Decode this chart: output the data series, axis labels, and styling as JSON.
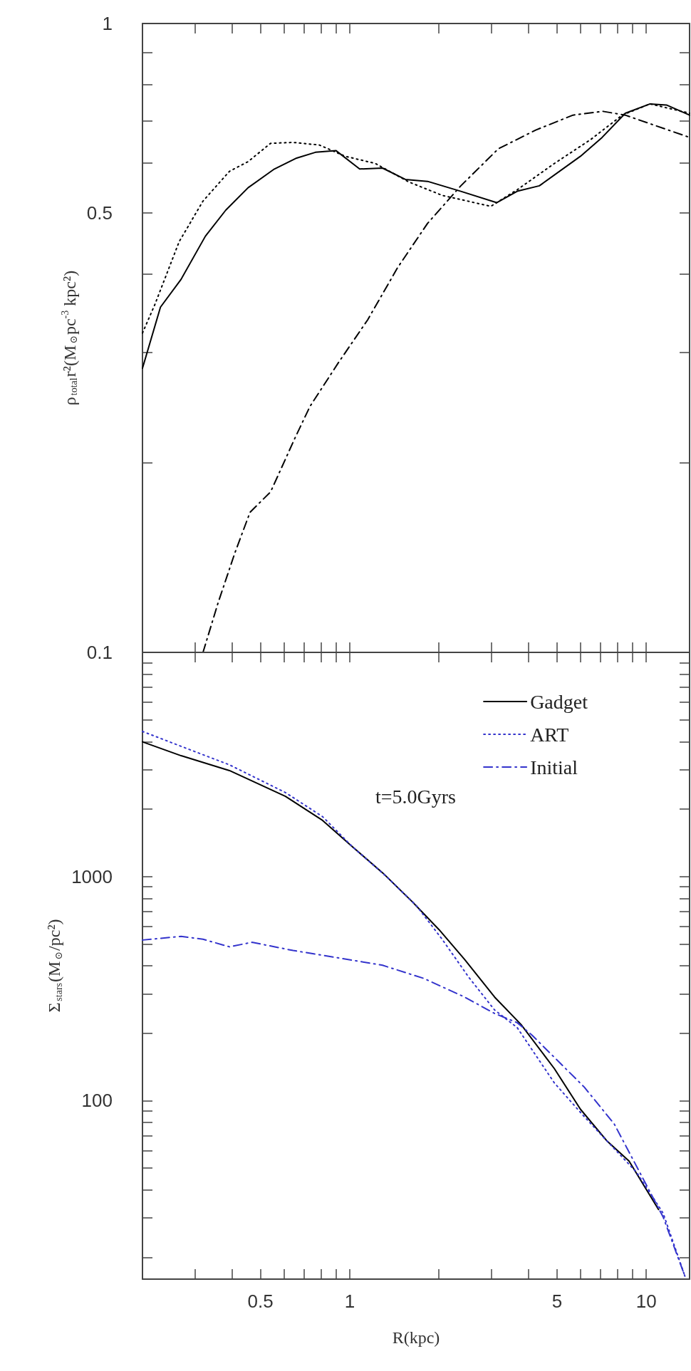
{
  "chart_data": [
    {
      "type": "line",
      "ylabel": "ρ$_{total}$r²(M$_{⊙}$pc$^{-3}$ kpc²)",
      "log": "xy",
      "xlim": [
        0.2,
        14
      ],
      "ylim": [
        0.1,
        1
      ],
      "xticks": [
        {
          "value": 0.3,
          "label": null
        },
        {
          "value": 0.4,
          "label": null
        },
        {
          "value": 0.5,
          "label": null
        },
        {
          "value": 0.6,
          "label": null
        },
        {
          "value": 0.7,
          "label": null
        },
        {
          "value": 0.8,
          "label": null
        },
        {
          "value": 0.9,
          "label": null
        },
        {
          "value": 1,
          "label": null
        },
        {
          "value": 2,
          "label": null
        },
        {
          "value": 3,
          "label": null
        },
        {
          "value": 4,
          "label": null
        },
        {
          "value": 5,
          "label": null
        },
        {
          "value": 6,
          "label": null
        },
        {
          "value": 7,
          "label": null
        },
        {
          "value": 8,
          "label": null
        },
        {
          "value": 9,
          "label": null
        },
        {
          "value": 10,
          "label": null
        }
      ],
      "yticks": [
        0.1,
        {
          "value": 0.2,
          "label": null
        },
        {
          "value": 0.3,
          "label": null
        },
        {
          "value": 0.4,
          "label": null
        },
        0.5,
        {
          "value": 0.6,
          "label": null
        },
        {
          "value": 0.7,
          "label": null
        },
        {
          "value": 0.8,
          "label": null
        },
        {
          "value": 0.9,
          "label": null
        },
        1
      ],
      "tick_labels": "y",
      "legend": false,
      "grid": false,
      "series": [
        {
          "color": "#000000",
          "line_style": "solid",
          "x": [
            0.2,
            0.23,
            0.27,
            0.326,
            0.382,
            0.454,
            0.557,
            0.662,
            0.766,
            0.898,
            1.08,
            1.29,
            1.54,
            1.83,
            2.37,
            3.13,
            3.67,
            4.36,
            6.0,
            7.1,
            8.5,
            10.3,
            11.7,
            14
          ],
          "values": [
            0.283,
            0.354,
            0.392,
            0.459,
            0.505,
            0.548,
            0.587,
            0.611,
            0.624,
            0.628,
            0.587,
            0.589,
            0.565,
            0.561,
            0.541,
            0.519,
            0.541,
            0.552,
            0.615,
            0.659,
            0.72,
            0.745,
            0.742,
            0.715
          ]
        },
        {
          "color": "#000000",
          "line_style": "dotted",
          "x": [
            0.2,
            0.22,
            0.266,
            0.32,
            0.393,
            0.454,
            0.541,
            0.644,
            0.789,
            0.966,
            1.22,
            1.58,
            2.05,
            2.99,
            3.67,
            4.9,
            6.5,
            8.3,
            10.3,
            14
          ],
          "values": [
            0.322,
            0.357,
            0.45,
            0.522,
            0.582,
            0.603,
            0.645,
            0.647,
            0.641,
            0.615,
            0.599,
            0.56,
            0.533,
            0.512,
            0.544,
            0.599,
            0.654,
            0.715,
            0.745,
            0.72
          ]
        },
        {
          "color": "#000000",
          "line_style": "dashed",
          "x": [
            0.32,
            0.36,
            0.41,
            0.461,
            0.541,
            0.653,
            0.734,
            0.912,
            1.15,
            1.45,
            1.83,
            2.37,
            3.17,
            4.24,
            5.66,
            7.14,
            8.5,
            10.1,
            14
          ],
          "values": [
            0.1,
            0.12,
            0.144,
            0.167,
            0.18,
            0.219,
            0.246,
            0.288,
            0.338,
            0.409,
            0.481,
            0.552,
            0.632,
            0.677,
            0.715,
            0.725,
            0.715,
            0.695,
            0.659
          ]
        }
      ]
    },
    {
      "type": "line",
      "xlabel": "R(kpc)",
      "ylabel": "Σ$_{stars}$(M$_{⊙}$/pc²)",
      "log": "xy",
      "xlim": [
        0.2,
        14
      ],
      "ylim": [
        16,
        10000
      ],
      "xticks": [
        {
          "value": 0.3,
          "label": null
        },
        {
          "value": 0.4,
          "label": null
        },
        0.5,
        {
          "value": 0.6,
          "label": null
        },
        {
          "value": 0.7,
          "label": null
        },
        {
          "value": 0.8,
          "label": null
        },
        {
          "value": 0.9,
          "label": null
        },
        1,
        {
          "value": 2,
          "label": null
        },
        {
          "value": 3,
          "label": null
        },
        {
          "value": 4,
          "label": null
        },
        5,
        {
          "value": 6,
          "label": null
        },
        {
          "value": 7,
          "label": null
        },
        {
          "value": 8,
          "label": null
        },
        {
          "value": 9,
          "label": null
        },
        10
      ],
      "yticks": [
        {
          "value": 20,
          "label": null
        },
        {
          "value": 30,
          "label": null
        },
        {
          "value": 40,
          "label": null
        },
        {
          "value": 50,
          "label": null
        },
        {
          "value": 60,
          "label": null
        },
        {
          "value": 70,
          "label": null
        },
        {
          "value": 80,
          "label": null
        },
        {
          "value": 90,
          "label": null
        },
        100,
        {
          "value": 200,
          "label": null
        },
        {
          "value": 300,
          "label": null
        },
        {
          "value": 400,
          "label": null
        },
        {
          "value": 500,
          "label": null
        },
        {
          "value": 600,
          "label": null
        },
        {
          "value": 700,
          "label": null
        },
        {
          "value": 800,
          "label": null
        },
        {
          "value": 900,
          "label": null
        },
        1000,
        {
          "value": 2000,
          "label": null
        },
        {
          "value": 3000,
          "label": null
        },
        {
          "value": 4000,
          "label": null
        },
        {
          "value": 5000,
          "label": null
        },
        {
          "value": 6000,
          "label": null
        },
        {
          "value": 7000,
          "label": null
        },
        {
          "value": 8000,
          "label": null
        },
        {
          "value": 9000,
          "label": null
        }
      ],
      "legend": "top right",
      "grid": false,
      "annotations": [
        "t=5.0Gyrs"
      ],
      "series": [
        {
          "name": "Gadget",
          "color": "#000000",
          "line_style": "solid",
          "x": [
            0.2,
            0.27,
            0.393,
            0.607,
            0.81,
            1.02,
            1.29,
            1.63,
            2.0,
            2.44,
            3.08,
            3.78,
            4.9,
            6.0,
            7.35,
            8.75,
            11.0
          ],
          "values": [
            3990,
            3460,
            2970,
            2280,
            1780,
            1360,
            1040,
            769,
            580,
            427,
            290,
            219,
            139,
            91.6,
            66.4,
            53.8,
            32.7
          ]
        },
        {
          "name": "ART",
          "color": "#3333cc",
          "line_style": "dotted",
          "x": [
            0.2,
            0.27,
            0.393,
            0.607,
            0.81,
            1.02,
            1.33,
            1.68,
            2.05,
            2.51,
            3.08,
            3.67,
            4.9,
            6.18,
            7.35,
            9.27,
            11.4,
            13.5
          ],
          "values": [
            4440,
            3810,
            3150,
            2370,
            1850,
            1360,
            1000,
            740,
            525,
            358,
            254,
            212,
            120,
            84.9,
            66.4,
            48,
            31.5,
            16.5
          ]
        },
        {
          "name": "Initial",
          "color": "#3333cc",
          "line_style": "dashed",
          "x": [
            0.2,
            0.27,
            0.32,
            0.393,
            0.468,
            0.644,
            0.911,
            1.29,
            1.78,
            2.44,
            3.08,
            3.67,
            4.12,
            4.9,
            6.18,
            7.8,
            9.5,
            11.4,
            13.5
          ],
          "values": [
            521,
            541,
            525,
            486,
            509,
            468,
            434,
            402,
            351,
            290,
            245,
            223,
            196,
            156,
            115,
            78.7,
            48,
            30.3,
            16.5
          ]
        }
      ]
    }
  ]
}
